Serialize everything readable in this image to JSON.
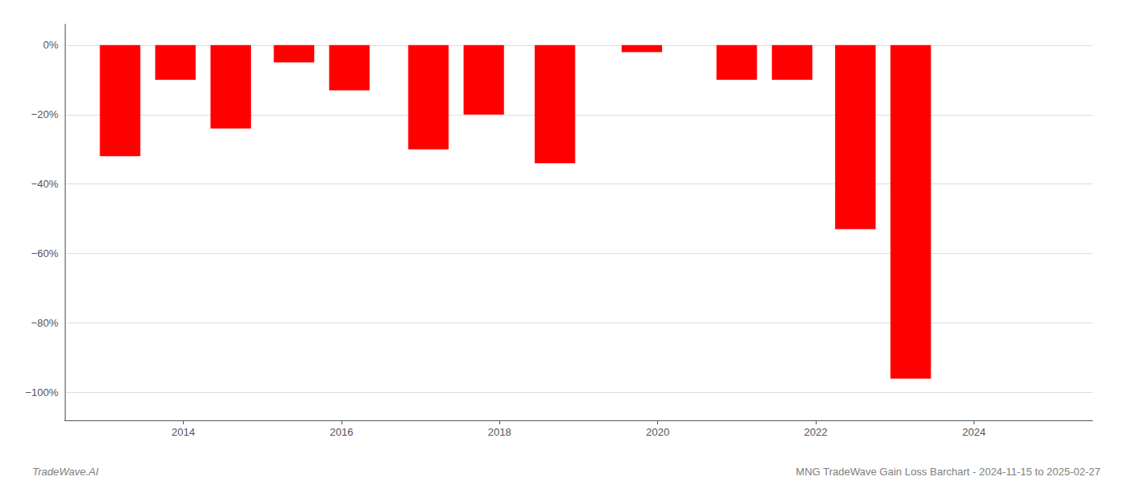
{
  "chart_data": {
    "type": "bar",
    "x": [
      2013.2,
      2013.9,
      2014.6,
      2015.4,
      2016.1,
      2017.1,
      2017.8,
      2018.7,
      2019.8,
      2021.0,
      2021.7,
      2022.5,
      2023.2
    ],
    "values": [
      -0.32,
      -0.1,
      -0.24,
      -0.05,
      -0.13,
      -0.3,
      -0.2,
      -0.34,
      -0.02,
      -0.1,
      -0.1,
      -0.53,
      -0.96
    ],
    "color": "#ff0000",
    "xlim": [
      2012.5,
      2025.5
    ],
    "xticks": [
      2014,
      2016,
      2018,
      2020,
      2022,
      2024
    ],
    "ylim": [
      -1.08,
      0.06
    ],
    "yticks": [
      {
        "value": 0,
        "label": "0%"
      },
      {
        "value": -0.2,
        "label": "−20%"
      },
      {
        "value": -0.4,
        "label": "−40%"
      },
      {
        "value": -0.6,
        "label": "−60%"
      },
      {
        "value": -0.8,
        "label": "−80%"
      },
      {
        "value": -1.0,
        "label": "−100%"
      }
    ],
    "grid": true,
    "annotations": [
      "TradeWave.AI",
      "MNG TradeWave Gain Loss Barchart - 2024-11-15 to 2025-02-27"
    ]
  }
}
